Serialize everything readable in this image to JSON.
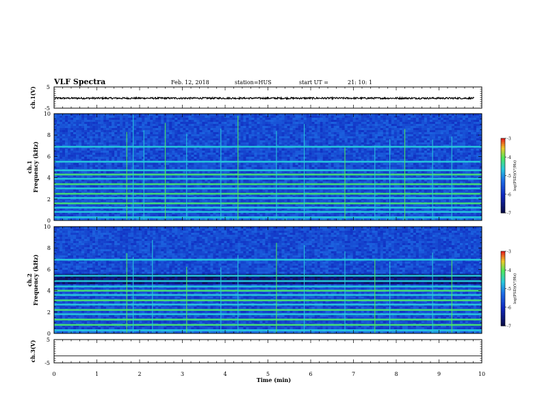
{
  "header": {
    "title": "VLF Spectra",
    "date": "Feb. 12, 2018",
    "station": "station=HUS",
    "start_label": "start  UT  =",
    "start_time": "21: 10: 1"
  },
  "chart_data": [
    {
      "type": "line",
      "panel": "ch1_waveform",
      "ylabel": "ch.1(V)",
      "ylim": [
        -5,
        5
      ],
      "y_ticks": [
        "5",
        "-5"
      ],
      "xlim": [
        0,
        10
      ],
      "series": [
        {
          "values_mean": -0.3,
          "amplitude": 0.4
        }
      ],
      "colors": {
        "trace": "#000000"
      }
    },
    {
      "type": "heatmap",
      "panel": "ch1_spectrogram",
      "ylabel": "ch.1\nFrequency (kHz)",
      "ylabel_lines": [
        "ch.1",
        "Frequency (kHz)"
      ],
      "ylim": [
        0,
        10
      ],
      "y_ticks": [
        "0",
        "2",
        "4",
        "6",
        "8",
        "10"
      ],
      "xlim": [
        0,
        10
      ],
      "horizontal_bands_khz": [
        0.3,
        0.8,
        1.2,
        1.6,
        2.1,
        2.5,
        3.0,
        3.4,
        3.9,
        4.3,
        4.7,
        5.5,
        6.9
      ],
      "bright_bands_khz": [
        1.6,
        2.5,
        3.4,
        4.3
      ],
      "vertical_sferics_min": [
        1.7,
        1.85,
        2.1,
        2.6,
        3.1,
        3.9,
        4.3,
        5.2,
        5.85,
        6.8,
        7.5,
        7.85,
        8.2,
        8.85,
        9.3
      ],
      "colorbar": {
        "label": "log(PSD)(V²/Hz)",
        "range": [
          -7,
          -3
        ],
        "ticks": [
          "-3",
          "-4",
          "-5",
          "-6",
          "-7"
        ]
      }
    },
    {
      "type": "heatmap",
      "panel": "ch2_spectrogram",
      "ylabel": "ch.2\nFrequency (kHz)",
      "ylabel_lines": [
        "ch.2",
        "Frequency (kHz)"
      ],
      "ylim": [
        0,
        10
      ],
      "y_ticks": [
        "0",
        "2",
        "4",
        "6",
        "8",
        "10"
      ],
      "xlim": [
        0,
        10
      ],
      "horizontal_bands_khz": [
        0.3,
        0.8,
        1.3,
        1.8,
        2.2,
        2.7,
        3.1,
        3.6,
        4.0,
        4.4,
        4.9,
        5.4,
        6.9
      ],
      "bright_bands_khz": [
        0.8,
        1.3,
        2.2,
        3.1,
        4.0
      ],
      "vertical_sferics_min": [
        1.7,
        1.85,
        2.3,
        3.1,
        3.9,
        4.3,
        5.2,
        5.85,
        6.8,
        7.5,
        7.85,
        8.85,
        9.3
      ],
      "colorbar": {
        "label": "log(PSD)(V²/Hz)",
        "range": [
          -7,
          -3
        ],
        "ticks": [
          "-3",
          "-4",
          "-5",
          "-6",
          "-7"
        ]
      }
    },
    {
      "type": "line",
      "panel": "ch3_waveform",
      "ylabel": "ch.3(V)",
      "ylim": [
        -5,
        5
      ],
      "y_ticks": [
        "5",
        "-5"
      ],
      "xlim": [
        0,
        10
      ],
      "series": [
        {
          "values_mean": -2,
          "amplitude": 0
        }
      ],
      "colors": {
        "trace": "#000000"
      }
    }
  ],
  "x_axis": {
    "label": "Time  (min)",
    "ticks": [
      "0",
      "1",
      "2",
      "3",
      "4",
      "5",
      "6",
      "7",
      "8",
      "9",
      "10"
    ]
  }
}
